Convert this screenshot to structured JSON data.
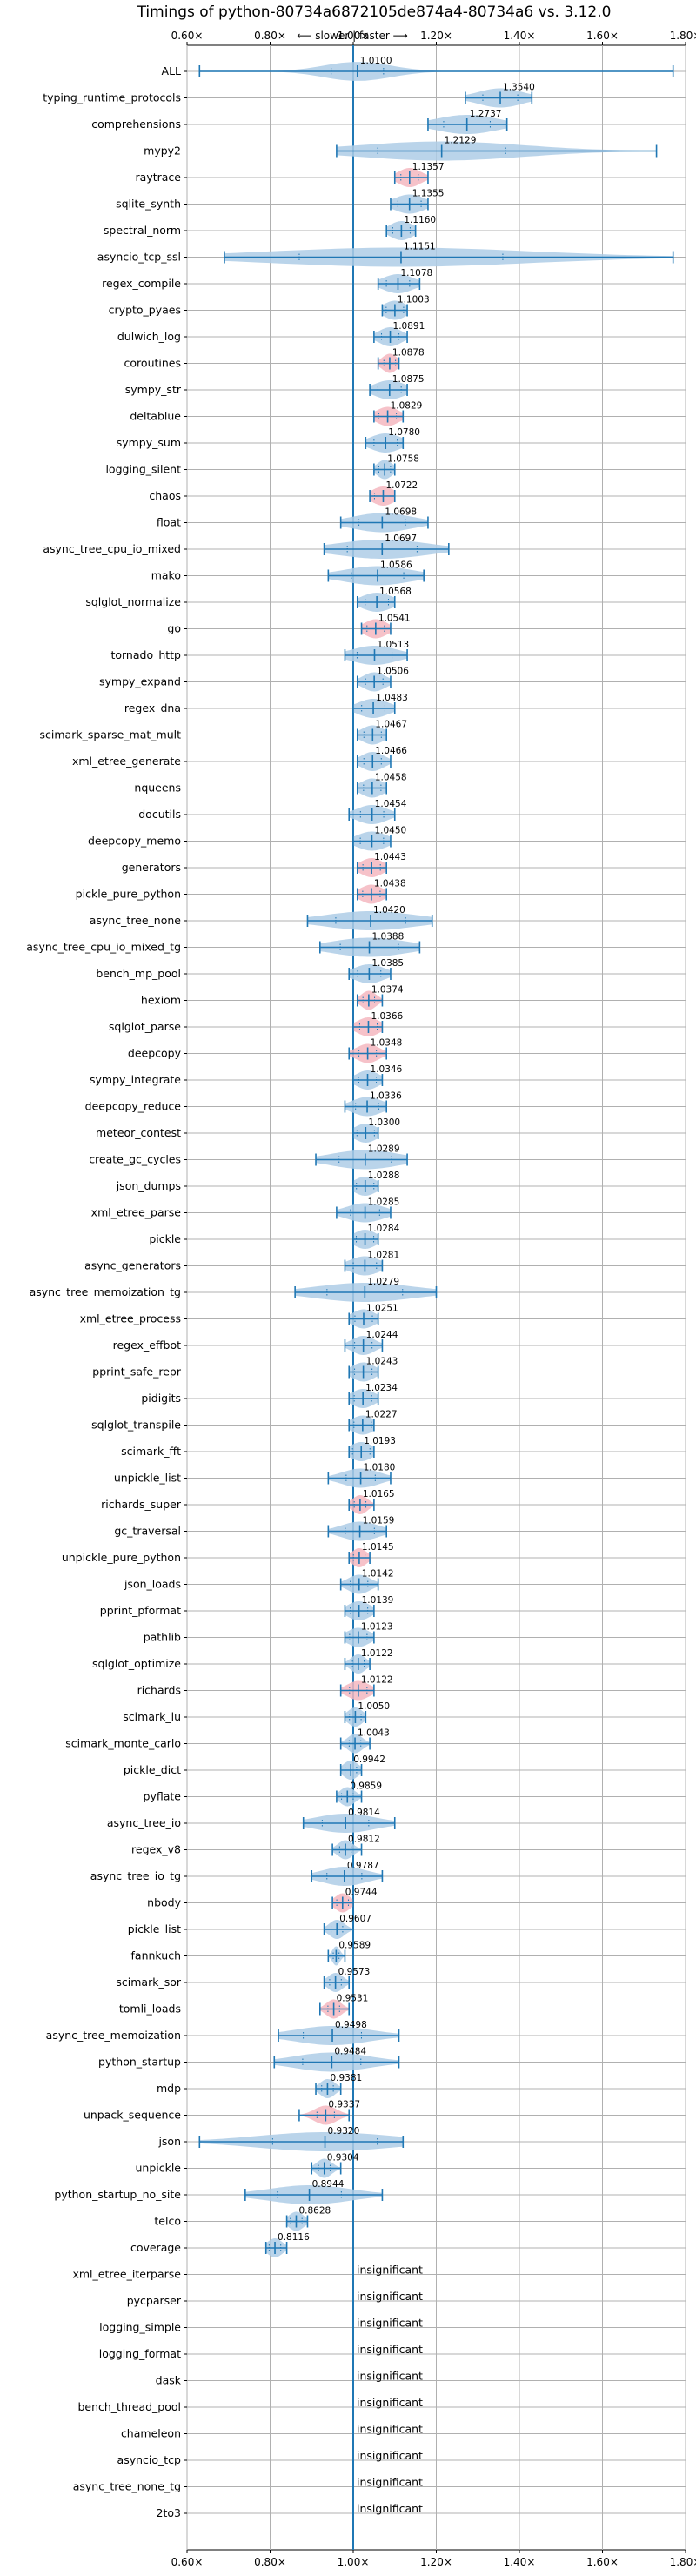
{
  "chart_data": {
    "type": "violin",
    "title": "Timings of python-80734a6872105de874a4-80734a6 vs. 3.12.0",
    "axis_annotation": "⟵ slower | faster ⟶",
    "xlim": [
      0.6,
      1.8
    ],
    "xticks": [
      0.6,
      0.8,
      1.0,
      1.2,
      1.4,
      1.6,
      1.8
    ],
    "xtick_labels": [
      "0.60×",
      "0.80×",
      "1.00×",
      "1.20×",
      "1.40×",
      "1.60×",
      "1.80×"
    ],
    "reference_line": 1.0,
    "grid": true,
    "insignificant_label": "insignificant",
    "colors": {
      "violin": "#1f77b4",
      "violin_fill": "#aecde6",
      "highlight_fill": "#f4b7c0",
      "line": "#1f77b4"
    },
    "benchmarks": [
      {
        "name": "ALL",
        "value": 1.01,
        "label": "1.0100",
        "min": 0.63,
        "max": 1.77,
        "spread": 0.09
      },
      {
        "name": "typing_runtime_protocols",
        "value": 1.354,
        "label": "1.3540",
        "min": 1.27,
        "max": 1.43,
        "spread": 0.06
      },
      {
        "name": "comprehensions",
        "value": 1.2737,
        "label": "1.2737",
        "min": 1.18,
        "max": 1.37,
        "spread": 0.08
      },
      {
        "name": "mypy2",
        "value": 1.2129,
        "label": "1.2129",
        "min": 0.96,
        "max": 1.73,
        "spread": 0.22
      },
      {
        "name": "raytrace",
        "value": 1.1357,
        "label": "1.1357",
        "min": 1.1,
        "max": 1.18,
        "spread": 0.03,
        "highlight": true
      },
      {
        "name": "sqlite_synth",
        "value": 1.1355,
        "label": "1.1355",
        "min": 1.09,
        "max": 1.18,
        "spread": 0.04
      },
      {
        "name": "spectral_norm",
        "value": 1.116,
        "label": "1.1160",
        "min": 1.08,
        "max": 1.15,
        "spread": 0.03
      },
      {
        "name": "asyncio_tcp_ssl",
        "value": 1.1151,
        "label": "1.1151",
        "min": 0.69,
        "max": 1.77,
        "spread": 0.35
      },
      {
        "name": "regex_compile",
        "value": 1.1078,
        "label": "1.1078",
        "min": 1.06,
        "max": 1.16,
        "spread": 0.04
      },
      {
        "name": "crypto_pyaes",
        "value": 1.1003,
        "label": "1.1003",
        "min": 1.07,
        "max": 1.13,
        "spread": 0.03
      },
      {
        "name": "dulwich_log",
        "value": 1.0891,
        "label": "1.0891",
        "min": 1.05,
        "max": 1.13,
        "spread": 0.03
      },
      {
        "name": "coroutines",
        "value": 1.0878,
        "label": "1.0878",
        "min": 1.06,
        "max": 1.11,
        "spread": 0.02,
        "highlight": true
      },
      {
        "name": "sympy_str",
        "value": 1.0875,
        "label": "1.0875",
        "min": 1.04,
        "max": 1.13,
        "spread": 0.04
      },
      {
        "name": "deltablue",
        "value": 1.0829,
        "label": "1.0829",
        "min": 1.05,
        "max": 1.12,
        "spread": 0.03,
        "highlight": true
      },
      {
        "name": "sympy_sum",
        "value": 1.078,
        "label": "1.0780",
        "min": 1.03,
        "max": 1.12,
        "spread": 0.04
      },
      {
        "name": "logging_silent",
        "value": 1.0758,
        "label": "1.0758",
        "min": 1.05,
        "max": 1.1,
        "spread": 0.02
      },
      {
        "name": "chaos",
        "value": 1.0722,
        "label": "1.0722",
        "min": 1.04,
        "max": 1.1,
        "spread": 0.03,
        "highlight": true
      },
      {
        "name": "float",
        "value": 1.0698,
        "label": "1.0698",
        "min": 0.97,
        "max": 1.18,
        "spread": 0.08
      },
      {
        "name": "async_tree_cpu_io_mixed",
        "value": 1.0697,
        "label": "1.0697",
        "min": 0.93,
        "max": 1.23,
        "spread": 0.12
      },
      {
        "name": "mako",
        "value": 1.0586,
        "label": "1.0586",
        "min": 0.94,
        "max": 1.17,
        "spread": 0.09
      },
      {
        "name": "sqlglot_normalize",
        "value": 1.0568,
        "label": "1.0568",
        "min": 1.01,
        "max": 1.1,
        "spread": 0.04
      },
      {
        "name": "go",
        "value": 1.0541,
        "label": "1.0541",
        "min": 1.02,
        "max": 1.09,
        "spread": 0.03,
        "highlight": true
      },
      {
        "name": "tornado_http",
        "value": 1.0513,
        "label": "1.0513",
        "min": 0.98,
        "max": 1.13,
        "spread": 0.06
      },
      {
        "name": "sympy_expand",
        "value": 1.0506,
        "label": "1.0506",
        "min": 1.01,
        "max": 1.09,
        "spread": 0.03
      },
      {
        "name": "regex_dna",
        "value": 1.0483,
        "label": "1.0483",
        "min": 1.0,
        "max": 1.1,
        "spread": 0.04
      },
      {
        "name": "scimark_sparse_mat_mult",
        "value": 1.0467,
        "label": "1.0467",
        "min": 1.01,
        "max": 1.08,
        "spread": 0.03
      },
      {
        "name": "xml_etree_generate",
        "value": 1.0466,
        "label": "1.0466",
        "min": 1.01,
        "max": 1.09,
        "spread": 0.03
      },
      {
        "name": "nqueens",
        "value": 1.0458,
        "label": "1.0458",
        "min": 1.01,
        "max": 1.08,
        "spread": 0.03
      },
      {
        "name": "docutils",
        "value": 1.0454,
        "label": "1.0454",
        "min": 0.99,
        "max": 1.1,
        "spread": 0.04
      },
      {
        "name": "deepcopy_memo",
        "value": 1.045,
        "label": "1.0450",
        "min": 1.0,
        "max": 1.09,
        "spread": 0.04
      },
      {
        "name": "generators",
        "value": 1.0443,
        "label": "1.0443",
        "min": 1.01,
        "max": 1.08,
        "spread": 0.03,
        "highlight": true
      },
      {
        "name": "pickle_pure_python",
        "value": 1.0438,
        "label": "1.0438",
        "min": 1.01,
        "max": 1.08,
        "spread": 0.03,
        "highlight": true
      },
      {
        "name": "async_tree_none",
        "value": 1.042,
        "label": "1.0420",
        "min": 0.89,
        "max": 1.19,
        "spread": 0.12
      },
      {
        "name": "async_tree_cpu_io_mixed_tg",
        "value": 1.0388,
        "label": "1.0388",
        "min": 0.92,
        "max": 1.16,
        "spread": 0.1
      },
      {
        "name": "bench_mp_pool",
        "value": 1.0385,
        "label": "1.0385",
        "min": 0.99,
        "max": 1.09,
        "spread": 0.04
      },
      {
        "name": "hexiom",
        "value": 1.0374,
        "label": "1.0374",
        "min": 1.01,
        "max": 1.07,
        "spread": 0.02,
        "highlight": true
      },
      {
        "name": "sqlglot_parse",
        "value": 1.0366,
        "label": "1.0366",
        "min": 1.0,
        "max": 1.07,
        "spread": 0.03,
        "highlight": true
      },
      {
        "name": "deepcopy",
        "value": 1.0348,
        "label": "1.0348",
        "min": 0.99,
        "max": 1.08,
        "spread": 0.03,
        "highlight": true
      },
      {
        "name": "sympy_integrate",
        "value": 1.0346,
        "label": "1.0346",
        "min": 1.0,
        "max": 1.07,
        "spread": 0.03
      },
      {
        "name": "deepcopy_reduce",
        "value": 1.0336,
        "label": "1.0336",
        "min": 0.98,
        "max": 1.08,
        "spread": 0.04
      },
      {
        "name": "meteor_contest",
        "value": 1.03,
        "label": "1.0300",
        "min": 1.0,
        "max": 1.06,
        "spread": 0.03
      },
      {
        "name": "create_gc_cycles",
        "value": 1.0289,
        "label": "1.0289",
        "min": 0.91,
        "max": 1.13,
        "spread": 0.09
      },
      {
        "name": "json_dumps",
        "value": 1.0288,
        "label": "1.0288",
        "min": 1.0,
        "max": 1.06,
        "spread": 0.03
      },
      {
        "name": "xml_etree_parse",
        "value": 1.0285,
        "label": "1.0285",
        "min": 0.96,
        "max": 1.09,
        "spread": 0.05
      },
      {
        "name": "pickle",
        "value": 1.0284,
        "label": "1.0284",
        "min": 1.0,
        "max": 1.06,
        "spread": 0.03
      },
      {
        "name": "async_generators",
        "value": 1.0281,
        "label": "1.0281",
        "min": 0.98,
        "max": 1.07,
        "spread": 0.04
      },
      {
        "name": "async_tree_memoization_tg",
        "value": 1.0279,
        "label": "1.0279",
        "min": 0.86,
        "max": 1.2,
        "spread": 0.13
      },
      {
        "name": "xml_etree_process",
        "value": 1.0251,
        "label": "1.0251",
        "min": 0.99,
        "max": 1.06,
        "spread": 0.03
      },
      {
        "name": "regex_effbot",
        "value": 1.0244,
        "label": "1.0244",
        "min": 0.98,
        "max": 1.07,
        "spread": 0.03
      },
      {
        "name": "pprint_safe_repr",
        "value": 1.0243,
        "label": "1.0243",
        "min": 0.99,
        "max": 1.06,
        "spread": 0.03
      },
      {
        "name": "pidigits",
        "value": 1.0234,
        "label": "1.0234",
        "min": 0.99,
        "max": 1.06,
        "spread": 0.03
      },
      {
        "name": "sqlglot_transpile",
        "value": 1.0227,
        "label": "1.0227",
        "min": 0.99,
        "max": 1.05,
        "spread": 0.03
      },
      {
        "name": "scimark_fft",
        "value": 1.0193,
        "label": "1.0193",
        "min": 0.99,
        "max": 1.05,
        "spread": 0.03
      },
      {
        "name": "unpickle_list",
        "value": 1.018,
        "label": "1.0180",
        "min": 0.94,
        "max": 1.09,
        "spread": 0.05
      },
      {
        "name": "richards_super",
        "value": 1.0165,
        "label": "1.0165",
        "min": 0.99,
        "max": 1.05,
        "spread": 0.02,
        "highlight": true
      },
      {
        "name": "gc_traversal",
        "value": 1.0159,
        "label": "1.0159",
        "min": 0.94,
        "max": 1.08,
        "spread": 0.05
      },
      {
        "name": "unpickle_pure_python",
        "value": 1.0145,
        "label": "1.0145",
        "min": 0.99,
        "max": 1.04,
        "spread": 0.02,
        "highlight": true
      },
      {
        "name": "json_loads",
        "value": 1.0142,
        "label": "1.0142",
        "min": 0.97,
        "max": 1.06,
        "spread": 0.03
      },
      {
        "name": "pprint_pformat",
        "value": 1.0139,
        "label": "1.0139",
        "min": 0.98,
        "max": 1.05,
        "spread": 0.03
      },
      {
        "name": "pathlib",
        "value": 1.0123,
        "label": "1.0123",
        "min": 0.98,
        "max": 1.05,
        "spread": 0.03
      },
      {
        "name": "sqlglot_optimize",
        "value": 1.0122,
        "label": "1.0122",
        "min": 0.98,
        "max": 1.04,
        "spread": 0.02
      },
      {
        "name": "richards",
        "value": 1.0122,
        "label": "1.0122",
        "min": 0.97,
        "max": 1.05,
        "spread": 0.03,
        "highlight": true
      },
      {
        "name": "scimark_lu",
        "value": 1.005,
        "label": "1.0050",
        "min": 0.98,
        "max": 1.03,
        "spread": 0.02
      },
      {
        "name": "scimark_monte_carlo",
        "value": 1.0043,
        "label": "1.0043",
        "min": 0.97,
        "max": 1.04,
        "spread": 0.02
      },
      {
        "name": "pickle_dict",
        "value": 0.9942,
        "label": "0.9942",
        "min": 0.97,
        "max": 1.02,
        "spread": 0.02
      },
      {
        "name": "pyflate",
        "value": 0.9859,
        "label": "0.9859",
        "min": 0.96,
        "max": 1.02,
        "spread": 0.02
      },
      {
        "name": "async_tree_io",
        "value": 0.9814,
        "label": "0.9814",
        "min": 0.88,
        "max": 1.1,
        "spread": 0.08
      },
      {
        "name": "regex_v8",
        "value": 0.9812,
        "label": "0.9812",
        "min": 0.95,
        "max": 1.02,
        "spread": 0.02
      },
      {
        "name": "async_tree_io_tg",
        "value": 0.9787,
        "label": "0.9787",
        "min": 0.9,
        "max": 1.07,
        "spread": 0.06
      },
      {
        "name": "nbody",
        "value": 0.9744,
        "label": "0.9744",
        "min": 0.95,
        "max": 1.0,
        "spread": 0.02,
        "highlight": true
      },
      {
        "name": "pickle_list",
        "value": 0.9607,
        "label": "0.9607",
        "min": 0.93,
        "max": 1.0,
        "spread": 0.02
      },
      {
        "name": "fannkuch",
        "value": 0.9589,
        "label": "0.9589",
        "min": 0.94,
        "max": 0.98,
        "spread": 0.01
      },
      {
        "name": "scimark_sor",
        "value": 0.9573,
        "label": "0.9573",
        "min": 0.93,
        "max": 0.99,
        "spread": 0.02
      },
      {
        "name": "tomli_loads",
        "value": 0.9531,
        "label": "0.9531",
        "min": 0.92,
        "max": 0.99,
        "spread": 0.02,
        "highlight": true
      },
      {
        "name": "async_tree_memoization",
        "value": 0.9498,
        "label": "0.9498",
        "min": 0.82,
        "max": 1.11,
        "spread": 0.1
      },
      {
        "name": "python_startup",
        "value": 0.9484,
        "label": "0.9484",
        "min": 0.81,
        "max": 1.11,
        "spread": 0.1
      },
      {
        "name": "mdp",
        "value": 0.9381,
        "label": "0.9381",
        "min": 0.91,
        "max": 0.97,
        "spread": 0.02
      },
      {
        "name": "unpack_sequence",
        "value": 0.9337,
        "label": "0.9337",
        "min": 0.87,
        "max": 0.99,
        "spread": 0.03,
        "highlight": true
      },
      {
        "name": "json",
        "value": 0.932,
        "label": "0.9320",
        "min": 0.63,
        "max": 1.12,
        "spread": 0.18
      },
      {
        "name": "unpickle",
        "value": 0.9304,
        "label": "0.9304",
        "min": 0.9,
        "max": 0.97,
        "spread": 0.02
      },
      {
        "name": "python_startup_no_site",
        "value": 0.8944,
        "label": "0.8944",
        "min": 0.74,
        "max": 1.07,
        "spread": 0.11
      },
      {
        "name": "telco",
        "value": 0.8628,
        "label": "0.8628",
        "min": 0.84,
        "max": 0.89,
        "spread": 0.02
      },
      {
        "name": "coverage",
        "value": 0.8116,
        "label": "0.8116",
        "min": 0.79,
        "max": 0.84,
        "spread": 0.02
      },
      {
        "name": "xml_etree_iterparse",
        "insignificant": true
      },
      {
        "name": "pycparser",
        "insignificant": true
      },
      {
        "name": "logging_simple",
        "insignificant": true
      },
      {
        "name": "logging_format",
        "insignificant": true
      },
      {
        "name": "dask",
        "insignificant": true
      },
      {
        "name": "bench_thread_pool",
        "insignificant": true
      },
      {
        "name": "chameleon",
        "insignificant": true
      },
      {
        "name": "asyncio_tcp",
        "insignificant": true
      },
      {
        "name": "async_tree_none_tg",
        "insignificant": true
      },
      {
        "name": "2to3",
        "insignificant": true
      }
    ]
  }
}
